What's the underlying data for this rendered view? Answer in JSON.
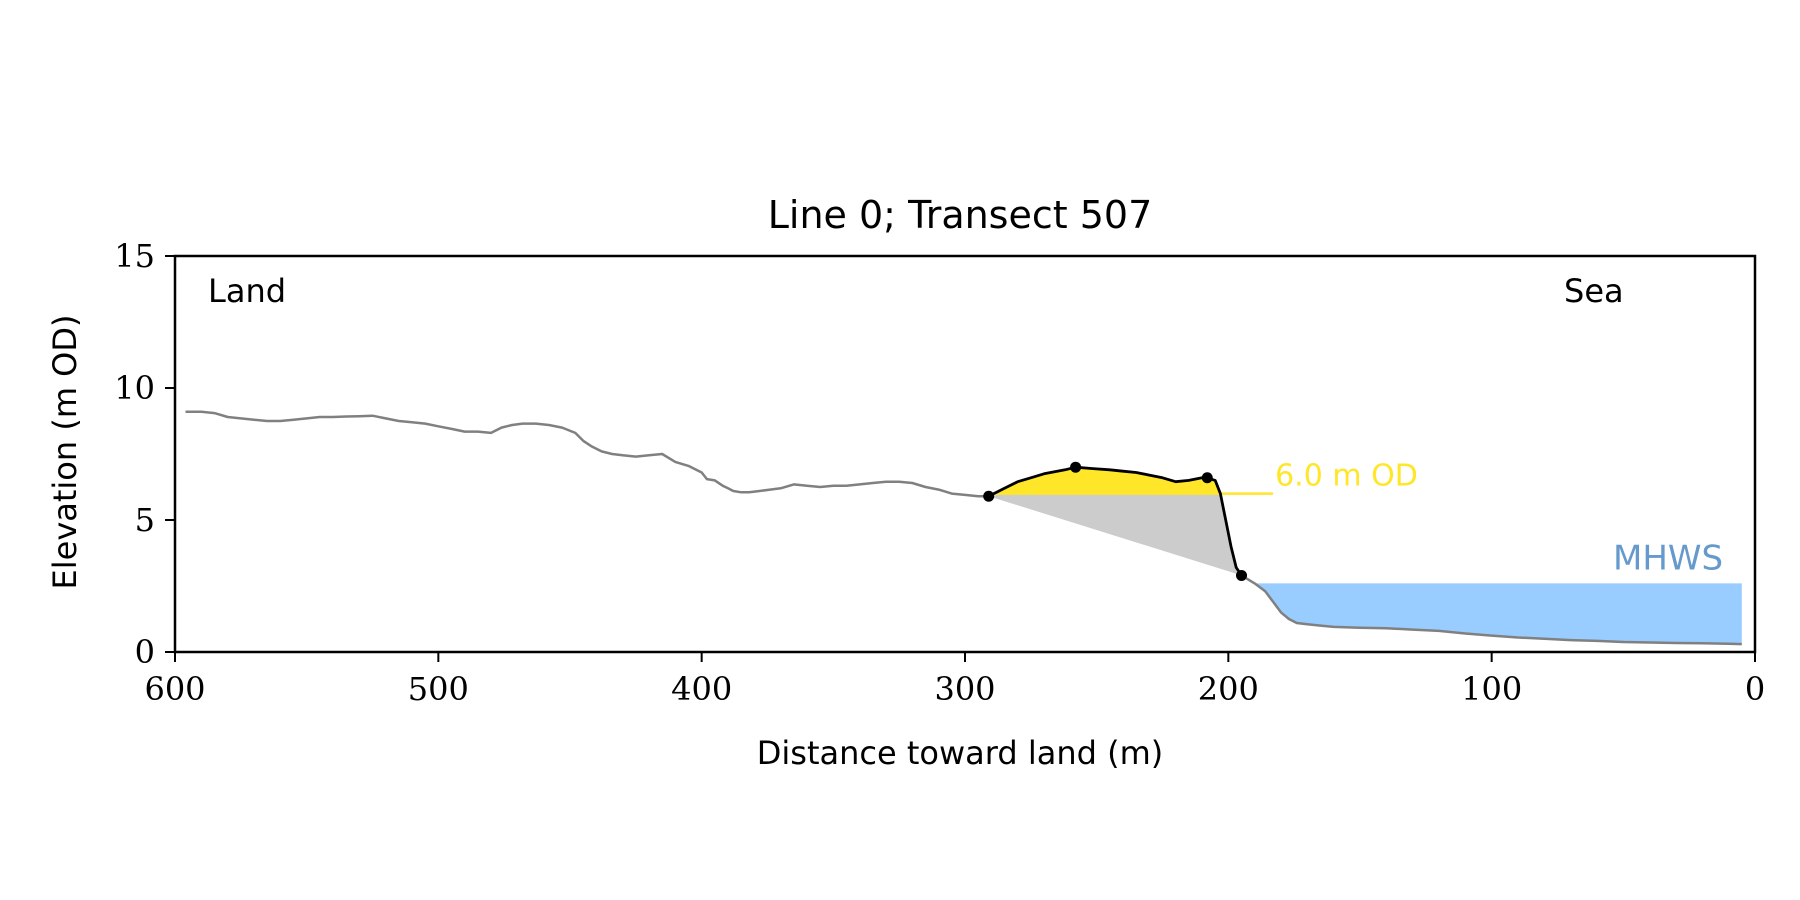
{
  "chart_data": {
    "type": "line",
    "title": "Line 0; Transect 507",
    "xlabel": "Distance toward land (m)",
    "ylabel": "Elevation (m OD)",
    "xlim": [
      600,
      0
    ],
    "ylim": [
      0,
      15
    ],
    "x_ticks": [
      600,
      500,
      400,
      300,
      200,
      100,
      0
    ],
    "y_ticks": [
      0,
      5,
      10,
      15
    ],
    "annotations": {
      "land": "Land",
      "sea": "Sea",
      "od_label": "6.0 m OD",
      "mhws_label": "MHWS"
    },
    "colors": {
      "profile": "#808080",
      "cliff": "#000000",
      "crest_fill": "#ffe629",
      "od_line": "#ffe629",
      "triangle_fill": "#cccccc",
      "mhws_fill": "#99ccff",
      "mhws_text": "#6699cc"
    },
    "profile": {
      "x": [
        596,
        590,
        585,
        580,
        575,
        570,
        565,
        560,
        555,
        550,
        545,
        540,
        535,
        530,
        525,
        520,
        515,
        510,
        505,
        500,
        495,
        490,
        485,
        480,
        476,
        472,
        468,
        463,
        458,
        453,
        448,
        445,
        442,
        438,
        434,
        430,
        425,
        420,
        415,
        410,
        405,
        400,
        398,
        395,
        392,
        390,
        388,
        385,
        382,
        378,
        374,
        370,
        365,
        360,
        355,
        350,
        345,
        340,
        335,
        330,
        325,
        320,
        315,
        310,
        305,
        300,
        295,
        291
      ],
      "y": [
        9.1,
        9.1,
        9.05,
        8.9,
        8.85,
        8.8,
        8.75,
        8.75,
        8.8,
        8.85,
        8.9,
        8.9,
        8.92,
        8.93,
        8.95,
        8.85,
        8.75,
        8.7,
        8.65,
        8.55,
        8.45,
        8.35,
        8.35,
        8.3,
        8.5,
        8.6,
        8.65,
        8.65,
        8.6,
        8.5,
        8.3,
        8.0,
        7.8,
        7.6,
        7.5,
        7.45,
        7.4,
        7.45,
        7.5,
        7.2,
        7.05,
        6.8,
        6.55,
        6.5,
        6.3,
        6.2,
        6.1,
        6.05,
        6.05,
        6.1,
        6.15,
        6.2,
        6.35,
        6.3,
        6.25,
        6.3,
        6.3,
        6.35,
        6.4,
        6.45,
        6.45,
        6.4,
        6.25,
        6.15,
        6.0,
        5.95,
        5.9,
        5.9
      ]
    },
    "cliff": {
      "x": [
        291,
        285,
        280,
        275,
        270,
        265,
        262,
        258,
        252,
        245,
        240,
        235,
        230,
        225,
        220,
        215,
        210,
        208,
        205,
        203,
        201,
        199,
        197,
        195,
        193
      ],
      "y": [
        5.9,
        6.2,
        6.45,
        6.6,
        6.75,
        6.85,
        6.9,
        7.0,
        6.95,
        6.9,
        6.85,
        6.8,
        6.7,
        6.6,
        6.45,
        6.5,
        6.6,
        6.6,
        6.5,
        6.0,
        5.0,
        4.0,
        3.2,
        2.9,
        2.9
      ]
    },
    "cliff_points": [
      {
        "x": 291,
        "y": 5.9
      },
      {
        "x": 258,
        "y": 7.0
      },
      {
        "x": 208,
        "y": 6.6
      },
      {
        "x": 195,
        "y": 2.9
      }
    ],
    "seaward": {
      "x": [
        195,
        190,
        186,
        183,
        180,
        177,
        174,
        170,
        165,
        160,
        150,
        140,
        130,
        120,
        110,
        100,
        90,
        80,
        70,
        60,
        50,
        40,
        30,
        20,
        10,
        5
      ],
      "y": [
        2.9,
        2.6,
        2.3,
        1.9,
        1.5,
        1.25,
        1.1,
        1.05,
        1.0,
        0.95,
        0.92,
        0.9,
        0.85,
        0.8,
        0.7,
        0.62,
        0.55,
        0.5,
        0.45,
        0.42,
        0.38,
        0.36,
        0.34,
        0.33,
        0.31,
        0.3
      ]
    },
    "od_level": {
      "value": 6.0,
      "x_from": 291,
      "x_to": 183
    },
    "mhws": {
      "value": 2.6,
      "x_from": 190,
      "x_to": 5
    }
  }
}
